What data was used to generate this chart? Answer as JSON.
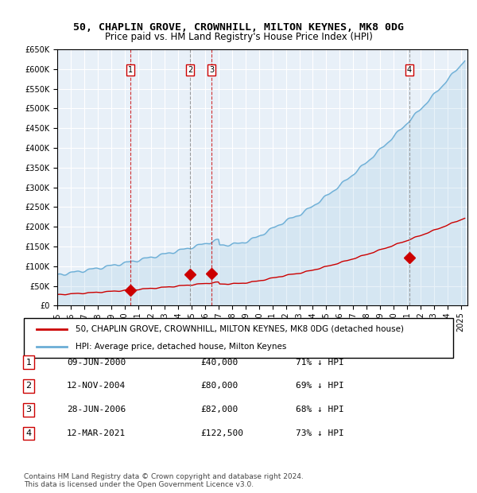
{
  "title": "50, CHAPLIN GROVE, CROWNHILL, MILTON KEYNES, MK8 0DG",
  "subtitle": "Price paid vs. HM Land Registry's House Price Index (HPI)",
  "footer_line1": "Contains HM Land Registry data © Crown copyright and database right 2024.",
  "footer_line2": "This data is licensed under the Open Government Licence v3.0.",
  "legend_house": "50, CHAPLIN GROVE, CROWNHILL, MILTON KEYNES, MK8 0DG (detached house)",
  "legend_hpi": "HPI: Average price, detached house, Milton Keynes",
  "sales": [
    {
      "num": 1,
      "date": "09-JUN-2000",
      "price": 40000,
      "pct": "71% ↓ HPI",
      "year": 2000.44
    },
    {
      "num": 2,
      "date": "12-NOV-2004",
      "price": 80000,
      "pct": "69% ↓ HPI",
      "year": 2004.87
    },
    {
      "num": 3,
      "date": "28-JUN-2006",
      "price": 82000,
      "pct": "68% ↓ HPI",
      "year": 2006.49
    },
    {
      "num": 4,
      "date": "12-MAR-2021",
      "price": 122500,
      "pct": "73% ↓ HPI",
      "year": 2021.19
    }
  ],
  "hpi_color": "#6baed6",
  "house_color": "#cc0000",
  "vline_red_color": "#cc0000",
  "vline_gray_color": "#888888",
  "bg_color": "#e8f0f8",
  "grid_color": "#ffffff",
  "ylim": [
    0,
    650000
  ],
  "xlim_start": 1995,
  "xlim_end": 2025.5,
  "ytick_step": 50000
}
